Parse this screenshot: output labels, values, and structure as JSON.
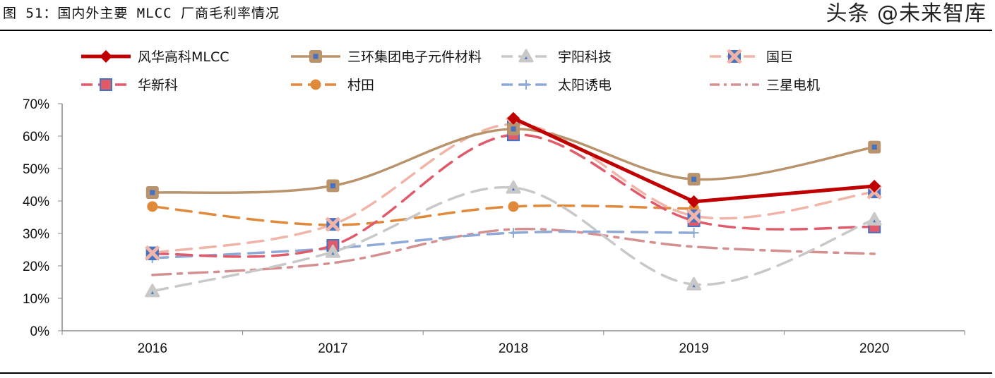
{
  "title": "图 51：国内外主要 MLCC 厂商毛利率情况",
  "watermark": "头条 @未来智库",
  "chart_data": {
    "type": "line",
    "title": "",
    "xlabel": "",
    "ylabel": "",
    "categories": [
      "2016",
      "2017",
      "2018",
      "2019",
      "2020"
    ],
    "ylim": [
      0,
      70
    ],
    "yticks": [
      "0%",
      "10%",
      "20%",
      "30%",
      "40%",
      "50%",
      "60%",
      "70%"
    ],
    "grid": false,
    "legend_position": "top",
    "series": [
      {
        "name": "风华高科MLCC",
        "values": [
          null,
          null,
          65.5,
          39.8,
          44.6
        ],
        "color": "#c00000",
        "dash": "solid",
        "marker": "diamond",
        "smooth": false,
        "width": 5
      },
      {
        "name": "三环集团电子元件材料",
        "values": [
          42.6,
          44.7,
          62.2,
          46.7,
          56.6
        ],
        "color": "#b9936c",
        "dash": "solid",
        "marker": "square",
        "smooth": true,
        "width": 3.5
      },
      {
        "name": "宇阳科技",
        "values": [
          12.2,
          24.3,
          44.1,
          14.3,
          34.3
        ],
        "color": "#c8c8c8",
        "dash": "dash",
        "marker": "triangle",
        "smooth": true,
        "width": 3.5
      },
      {
        "name": "国巨",
        "values": [
          24.0,
          32.8,
          63.7,
          35.4,
          42.8
        ],
        "color": "#f0b4a8",
        "dash": "dash",
        "marker": "x",
        "smooth": true,
        "width": 3.5
      },
      {
        "name": "华新科",
        "values": [
          23.7,
          26.3,
          60.4,
          33.9,
          32.0
        ],
        "color": "#e05a6a",
        "dash": "dash",
        "marker": "xsquare",
        "smooth": true,
        "width": 3.5
      },
      {
        "name": "村田",
        "values": [
          38.3,
          32.6,
          38.3,
          37.6,
          null
        ],
        "color": "#e0893a",
        "dash": "dash",
        "marker": "circle",
        "smooth": true,
        "width": 3.5
      },
      {
        "name": "太阳诱电",
        "values": [
          22.4,
          25.4,
          30.2,
          30.2,
          null
        ],
        "color": "#8ea9d6",
        "dash": "dash",
        "marker": "plus",
        "smooth": true,
        "width": 3.5
      },
      {
        "name": "三星电机",
        "values": [
          17.2,
          20.9,
          31.3,
          25.9,
          23.7
        ],
        "color": "#d49090",
        "dash": "dashdot",
        "marker": "none",
        "smooth": true,
        "width": 3.5
      }
    ]
  }
}
